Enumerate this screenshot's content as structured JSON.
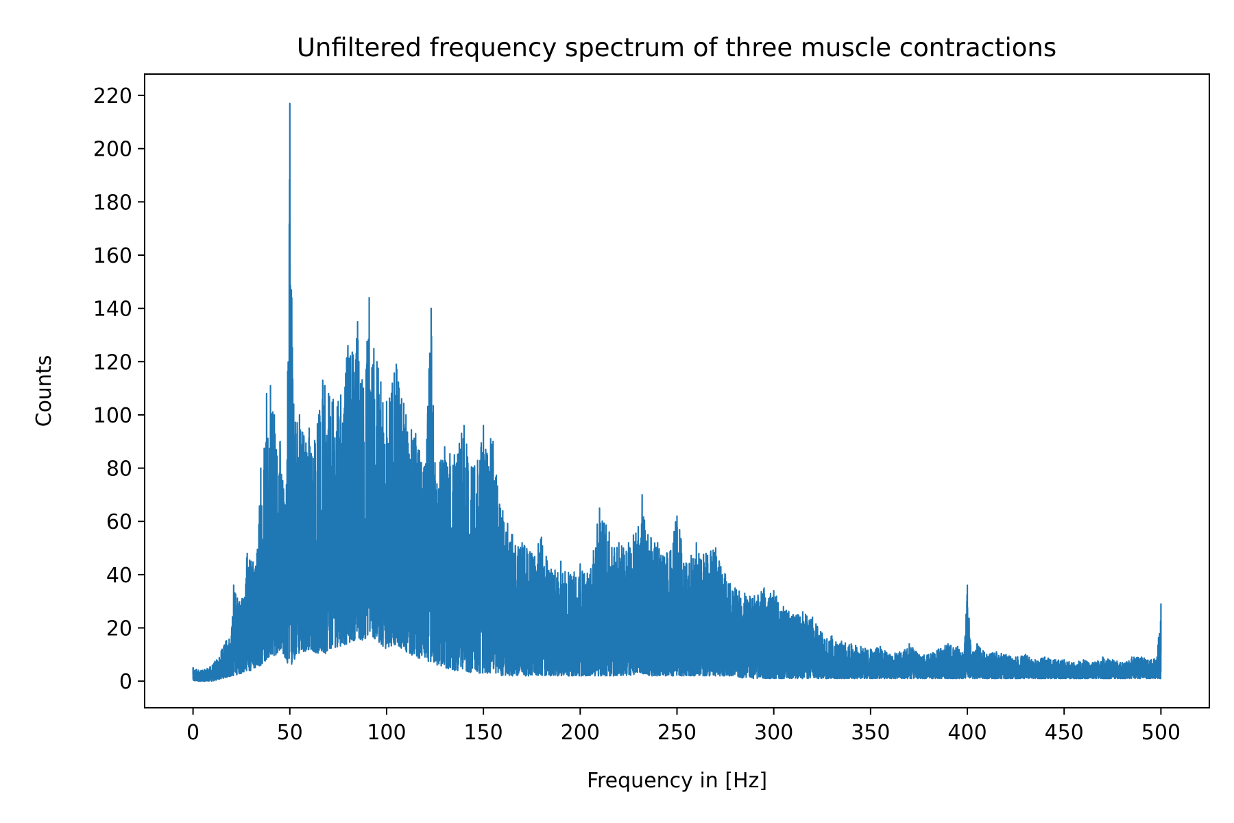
{
  "chart_data": {
    "type": "line",
    "title": "Unfiltered frequency spectrum of three muscle contractions",
    "xlabel": "Frequency in [Hz]",
    "ylabel": "Counts",
    "xlim": [
      -25,
      525
    ],
    "ylim": [
      -10,
      228
    ],
    "xticks": [
      0,
      50,
      100,
      150,
      200,
      250,
      300,
      350,
      400,
      450,
      500
    ],
    "yticks": [
      0,
      20,
      40,
      60,
      80,
      100,
      120,
      140,
      160,
      180,
      200,
      220
    ],
    "grid": false,
    "legend": "none",
    "series": [
      {
        "color": "#1f77b4",
        "envelope": {
          "x": [
            0,
            5,
            10,
            15,
            20,
            21,
            25,
            28,
            30,
            33,
            35,
            38,
            40,
            42,
            45,
            48,
            50,
            52,
            55,
            60,
            65,
            67,
            70,
            75,
            80,
            85,
            88,
            91,
            95,
            100,
            105,
            110,
            115,
            120,
            123,
            125,
            130,
            135,
            140,
            145,
            150,
            155,
            160,
            165,
            170,
            175,
            180,
            185,
            190,
            195,
            200,
            205,
            210,
            215,
            220,
            225,
            230,
            232,
            235,
            240,
            245,
            250,
            255,
            260,
            265,
            270,
            275,
            280,
            285,
            290,
            295,
            300,
            305,
            310,
            315,
            320,
            325,
            330,
            335,
            340,
            345,
            350,
            355,
            360,
            365,
            370,
            375,
            380,
            385,
            390,
            395,
            398,
            400,
            402,
            405,
            410,
            415,
            420,
            425,
            430,
            435,
            440,
            445,
            450,
            455,
            460,
            465,
            470,
            475,
            480,
            485,
            490,
            495,
            498,
            500
          ],
          "upper": [
            5,
            4,
            6,
            12,
            20,
            36,
            30,
            48,
            45,
            48,
            80,
            108,
            111,
            100,
            90,
            65,
            217,
            104,
            100,
            95,
            100,
            113,
            108,
            105,
            126,
            135,
            110,
            144,
            120,
            105,
            119,
            100,
            93,
            80,
            140,
            82,
            88,
            85,
            96,
            80,
            96,
            90,
            64,
            55,
            52,
            48,
            54,
            42,
            45,
            40,
            44,
            40,
            65,
            56,
            52,
            52,
            58,
            70,
            55,
            52,
            48,
            62,
            44,
            52,
            48,
            50,
            40,
            35,
            33,
            32,
            35,
            34,
            28,
            25,
            26,
            24,
            18,
            17,
            15,
            14,
            13,
            12,
            13,
            10,
            11,
            14,
            10,
            10,
            12,
            14,
            13,
            10,
            36,
            10,
            14,
            10,
            11,
            10,
            9,
            10,
            8,
            9,
            8,
            8,
            7,
            8,
            7,
            9,
            8,
            7,
            9,
            9,
            8,
            9,
            29
          ],
          "lower": [
            0,
            0,
            0,
            1,
            2,
            2,
            3,
            4,
            4,
            5,
            6,
            8,
            10,
            9,
            12,
            8,
            5,
            8,
            10,
            12,
            10,
            9,
            12,
            13,
            14,
            16,
            15,
            18,
            15,
            12,
            14,
            11,
            9,
            8,
            7,
            6,
            5,
            4,
            4,
            3,
            3,
            3,
            2,
            2,
            2,
            2,
            2,
            2,
            2,
            2,
            2,
            2,
            2,
            2,
            2,
            2,
            3,
            3,
            2,
            2,
            2,
            2,
            2,
            2,
            2,
            2,
            2,
            2,
            1,
            1,
            1,
            1,
            1,
            1,
            1,
            1,
            1,
            1,
            1,
            1,
            1,
            1,
            1,
            1,
            1,
            1,
            1,
            1,
            1,
            1,
            1,
            1,
            1,
            1,
            1,
            1,
            1,
            1,
            1,
            1,
            1,
            1,
            1,
            1,
            1,
            1,
            1,
            1,
            1,
            1,
            1,
            1,
            1,
            1,
            1
          ]
        }
      }
    ]
  }
}
